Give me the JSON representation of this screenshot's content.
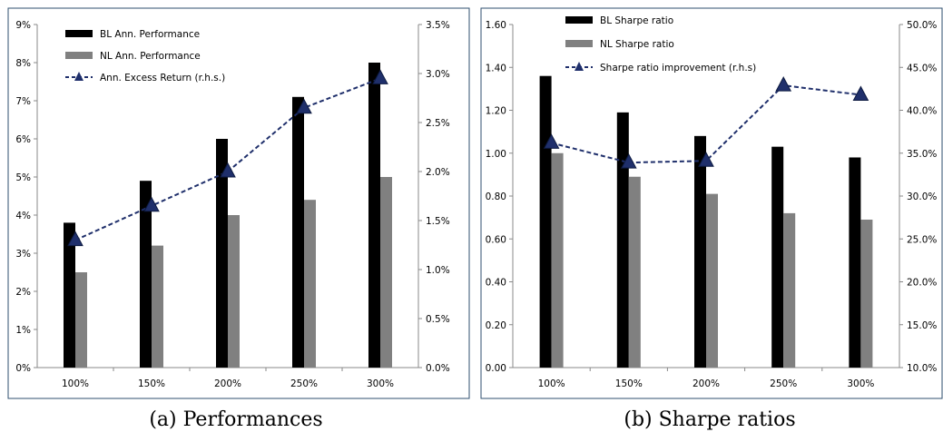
{
  "chart_data": [
    {
      "type": "bar",
      "caption": "(a) Performances",
      "categories": [
        "100%",
        "150%",
        "200%",
        "250%",
        "300%"
      ],
      "series": [
        {
          "name": "BL Ann. Performance",
          "kind": "bar",
          "axis": "left",
          "color": "#000000",
          "values": [
            3.8,
            4.9,
            6.0,
            7.1,
            8.0
          ]
        },
        {
          "name": "NL Ann. Performance",
          "kind": "bar",
          "axis": "left",
          "color": "#808080",
          "values": [
            2.5,
            3.2,
            4.0,
            4.4,
            5.0
          ]
        },
        {
          "name": "Ann. Excess Return (r.h.s.)",
          "kind": "line",
          "axis": "right",
          "color": "#1f2f6b",
          "values": [
            1.3,
            1.65,
            2.0,
            2.65,
            2.95
          ]
        }
      ],
      "ylim": [
        0,
        9
      ],
      "y2lim": [
        0,
        3.5
      ],
      "yticks": [
        "0%",
        "1%",
        "2%",
        "3%",
        "4%",
        "5%",
        "6%",
        "7%",
        "8%",
        "9%"
      ],
      "y2ticks": [
        "0.0%",
        "0.5%",
        "1.0%",
        "1.5%",
        "2.0%",
        "2.5%",
        "3.0%",
        "3.5%"
      ],
      "legend": "top-left",
      "grid": false
    },
    {
      "type": "bar",
      "caption": "(b) Sharpe ratios",
      "categories": [
        "100%",
        "150%",
        "200%",
        "250%",
        "300%"
      ],
      "series": [
        {
          "name": "BL Sharpe ratio",
          "kind": "bar",
          "axis": "left",
          "color": "#000000",
          "values": [
            1.36,
            1.19,
            1.08,
            1.03,
            0.98
          ]
        },
        {
          "name": "NL Sharpe ratio",
          "kind": "bar",
          "axis": "left",
          "color": "#808080",
          "values": [
            1.0,
            0.89,
            0.81,
            0.72,
            0.69
          ]
        },
        {
          "name": "Sharpe ratio improvement (r.h.s)",
          "kind": "line",
          "axis": "right",
          "color": "#1f2f6b",
          "values": [
            36.2,
            33.9,
            34.1,
            42.9,
            41.8
          ]
        }
      ],
      "ylim": [
        0,
        1.6
      ],
      "y2lim": [
        10,
        50
      ],
      "yticks": [
        "0.00",
        "0.20",
        "0.40",
        "0.60",
        "0.80",
        "1.00",
        "1.20",
        "1.40",
        "1.60"
      ],
      "y2ticks": [
        "10.0%",
        "15.0%",
        "20.0%",
        "25.0%",
        "30.0%",
        "35.0%",
        "40.0%",
        "45.0%",
        "50.0%"
      ],
      "legend": "top-left",
      "grid": false
    }
  ]
}
